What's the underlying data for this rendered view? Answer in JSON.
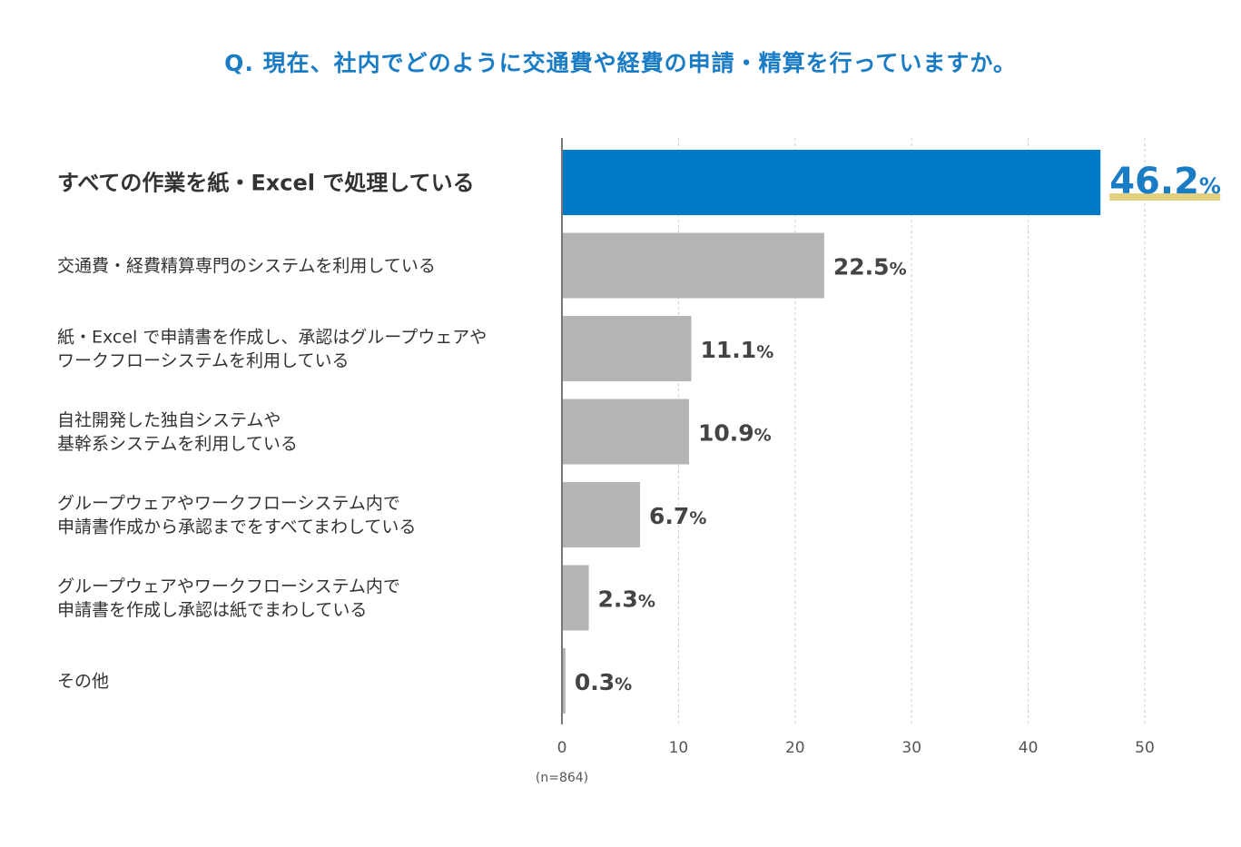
{
  "title": "Q. 現在、社内でどのように交通費や経費の申請・精算を行っていますか。",
  "note": "(n=864)",
  "colors": {
    "highlight_bar": "#0079c6",
    "bar": "#b5b5b5",
    "highlight_label": "#1a7cc4",
    "highlight_underline": "#e3d07e",
    "text": "#333333",
    "value_text": "#444444",
    "axis": "#777777",
    "grid": "#cccccc"
  },
  "chart_data": {
    "type": "bar",
    "orientation": "horizontal",
    "categories": [
      [
        "すべての作業を紙・Excel で処理している"
      ],
      [
        "交通費・経費精算専門のシステムを利用している"
      ],
      [
        "紙・Excel で申請書を作成し、承認はグループウェアや",
        "ワークフローシステムを利用している"
      ],
      [
        "自社開発した独自システムや",
        "基幹系システムを利用している"
      ],
      [
        "グループウェアやワークフローシステム内で",
        "申請書作成から承認までをすべてまわしている"
      ],
      [
        "グループウェアやワークフローシステム内で",
        "申請書を作成し承認は紙でまわしている"
      ],
      [
        "その他"
      ]
    ],
    "values": [
      46.2,
      22.5,
      11.1,
      10.9,
      6.7,
      2.3,
      0.3
    ],
    "value_labels": [
      "46.2",
      "22.5",
      "11.1",
      "10.9",
      "6.7",
      "2.3",
      "0.3"
    ],
    "unit": "%",
    "highlight_index": 0,
    "xlim": [
      0,
      50
    ],
    "xticks": [
      "0",
      "10",
      "20",
      "30",
      "40",
      "50"
    ],
    "tick_values": [
      0,
      10,
      20,
      30,
      40,
      50
    ],
    "grid": true,
    "legend": "none"
  }
}
